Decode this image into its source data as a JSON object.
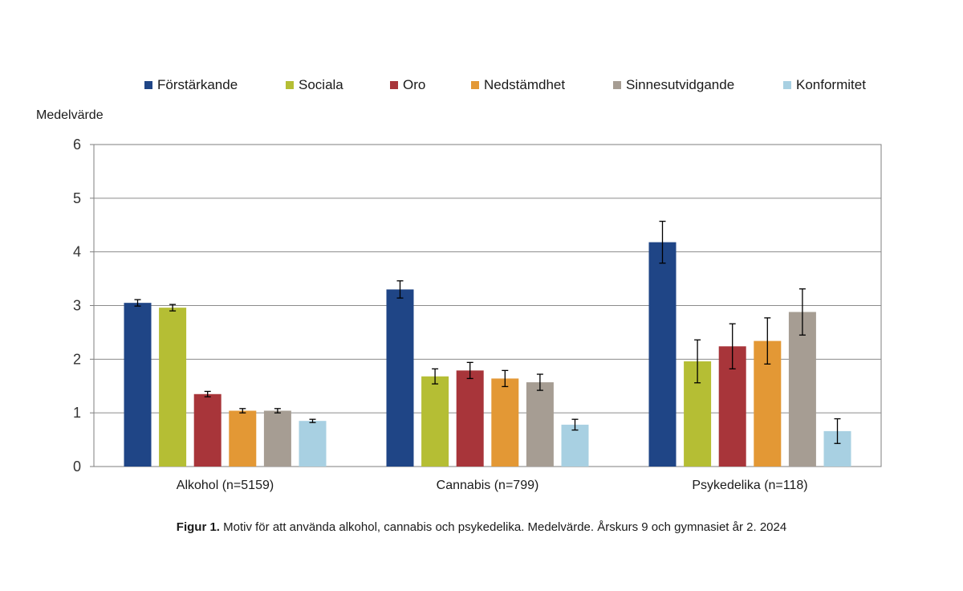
{
  "chart_data": {
    "type": "bar",
    "ylabel": "Medelvärde",
    "ylim": [
      0,
      6
    ],
    "yticks": [
      "0",
      "1",
      "2",
      "3",
      "4",
      "5",
      "6"
    ],
    "grid": true,
    "legend_position": "top",
    "categories": [
      "Alkohol (n=5159)",
      "Cannabis (n=799)",
      "Psykedelika (n=118)"
    ],
    "series": [
      {
        "name": "Förstärkande",
        "color": "#1f4586",
        "values": [
          3.05,
          3.3,
          4.18
        ],
        "error": [
          0.06,
          0.16,
          0.39
        ]
      },
      {
        "name": "Sociala",
        "color": "#b5be34",
        "values": [
          2.96,
          1.68,
          1.96
        ],
        "error": [
          0.06,
          0.14,
          0.4
        ]
      },
      {
        "name": "Oro",
        "color": "#a8353a",
        "values": [
          1.35,
          1.79,
          2.24
        ],
        "error": [
          0.05,
          0.15,
          0.42
        ]
      },
      {
        "name": "Nedstämdhet",
        "color": "#e39835",
        "values": [
          1.04,
          1.64,
          2.34
        ],
        "error": [
          0.04,
          0.15,
          0.43
        ]
      },
      {
        "name": "Sinnesutvidgande",
        "color": "#a69d93",
        "values": [
          1.04,
          1.57,
          2.88
        ],
        "error": [
          0.04,
          0.15,
          0.43
        ]
      },
      {
        "name": "Konformitet",
        "color": "#a8d0e2",
        "values": [
          0.85,
          0.78,
          0.66
        ],
        "error": [
          0.03,
          0.1,
          0.23
        ]
      }
    ]
  },
  "caption": {
    "prefix": "Figur 1.",
    "text": " Motiv för att använda alkohol, cannabis och psykedelika. Medelvärde. Årskurs 9 och gymnasiet år 2. 2024"
  }
}
